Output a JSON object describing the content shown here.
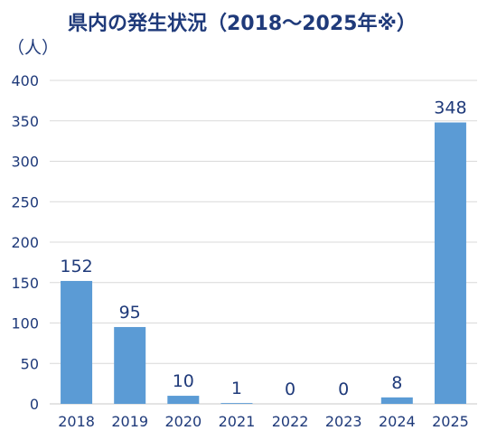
{
  "title": "県内の発生状況（2018～2025年※）",
  "unit_label": "（人）",
  "colors": {
    "bar": "#5b9bd5",
    "text": "#1f3a7a",
    "grid": "#d9d9d9"
  },
  "chart_data": {
    "type": "bar",
    "title": "県内の発生状況（2018～2025年※）",
    "xlabel": "",
    "ylabel": "（人）",
    "categories": [
      "2018",
      "2019",
      "2020",
      "2021",
      "2022",
      "2023",
      "2024",
      "2025"
    ],
    "values": [
      152,
      95,
      10,
      1,
      0,
      0,
      8,
      348
    ],
    "data_labels": [
      "152",
      "95",
      "10",
      "1",
      "0",
      "0",
      "8",
      "348"
    ],
    "ylim": [
      0,
      400
    ],
    "yticks": [
      0,
      50,
      100,
      150,
      200,
      250,
      300,
      350,
      400
    ],
    "ytick_labels": [
      "0",
      "50",
      "100",
      "150",
      "200",
      "250",
      "300",
      "350",
      "400"
    ],
    "grid": true,
    "legend": "none"
  }
}
